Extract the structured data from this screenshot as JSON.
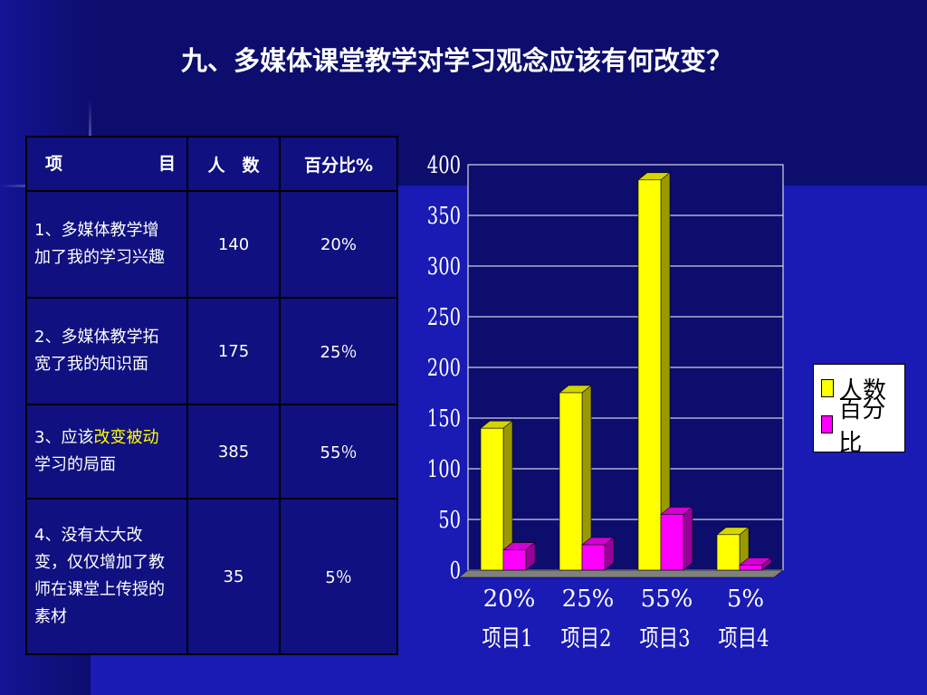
{
  "title": "九、多媒体课堂教学对学习观念应该有何改变？",
  "table": {
    "headers": {
      "item_left": "项",
      "item_right": "目",
      "count": "人　数",
      "percent": "百分比%"
    },
    "rows": [
      {
        "item": "1、多媒体教学增加了我的学习兴趣",
        "count": "140",
        "percent": "20%"
      },
      {
        "item": "2、多媒体教学拓宽了我的知识面",
        "count": "175",
        "percent": "25％"
      },
      {
        "item_prefix": "3、应该",
        "item_highlight_1": "改变",
        "item_highlight_2": "被动",
        "item_suffix": "学习的局面",
        "count": "385",
        "percent": "55％"
      },
      {
        "item": "4、没有太大改变，仅仅增加了教师在课堂上传授的素材",
        "count": "35",
        "percent": "5％"
      }
    ]
  },
  "colors": {
    "background": "#0d0d6e",
    "band": "#1a1ab4",
    "highlight": "#ffff00",
    "series1": "#ffff00",
    "series2": "#ff00ff"
  },
  "chart_data": {
    "type": "bar",
    "categories": [
      "20%\n项目1",
      "25%\n项目2",
      "55%\n项目3",
      "5%\n项目4"
    ],
    "category_labels_top": [
      "20%",
      "25%",
      "55%",
      "5%"
    ],
    "category_labels_bottom": [
      "项目1",
      "项目2",
      "项目3",
      "项目4"
    ],
    "series": [
      {
        "name": "人数",
        "values": [
          140,
          175,
          385,
          35
        ],
        "color": "#ffff00"
      },
      {
        "name": "百分比",
        "values": [
          20,
          25,
          55,
          5
        ],
        "color": "#ff00ff"
      }
    ],
    "ylim": [
      0,
      400
    ],
    "yticks": [
      "0",
      "50",
      "100",
      "150",
      "200",
      "250",
      "300",
      "350",
      "400"
    ],
    "grid": true,
    "legend_position": "right",
    "style": "3d"
  }
}
